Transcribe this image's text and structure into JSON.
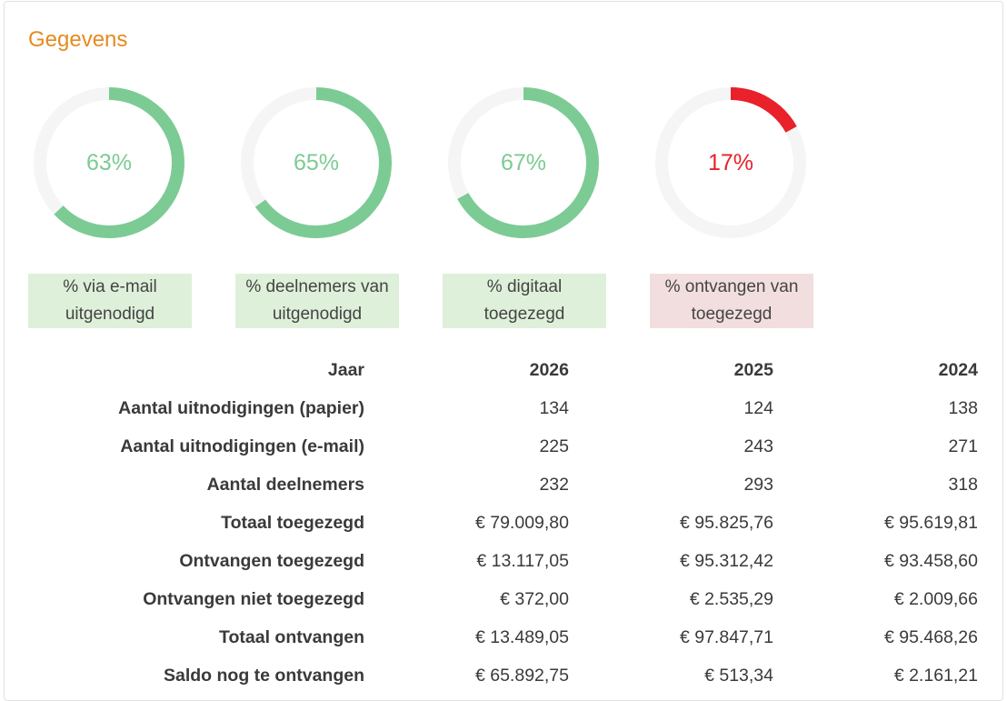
{
  "panel": {
    "title": "Gegevens"
  },
  "gauges": [
    {
      "percent": 63,
      "label": "% via e-mail uitgenodigd",
      "color": "#7ccb94",
      "label_bg": "#def0d9"
    },
    {
      "percent": 65,
      "label": "% deelnemers van uitgenodigd",
      "color": "#7ccb94",
      "label_bg": "#def0d9"
    },
    {
      "percent": 67,
      "label": "% digitaal toegezegd",
      "color": "#7ccb94",
      "label_bg": "#def0d9"
    },
    {
      "percent": 17,
      "label": "% ontvangen van toegezegd",
      "color": "#e8212b",
      "label_bg": "#f2dede"
    }
  ],
  "gauge_track_color": "#f5f5f5",
  "table": {
    "header": {
      "label": "Jaar",
      "years": [
        "2026",
        "2025",
        "2024"
      ]
    },
    "rows": [
      {
        "label": "Aantal uitnodigingen (papier)",
        "values": [
          "134",
          "124",
          "138"
        ]
      },
      {
        "label": "Aantal uitnodigingen (e-mail)",
        "values": [
          "225",
          "243",
          "271"
        ]
      },
      {
        "label": "Aantal deelnemers",
        "values": [
          "232",
          "293",
          "318"
        ]
      },
      {
        "label": "Totaal toegezegd",
        "values": [
          "€ 79.009,80",
          "€ 95.825,76",
          "€ 95.619,81"
        ]
      },
      {
        "label": "Ontvangen toegezegd",
        "values": [
          "€ 13.117,05",
          "€ 95.312,42",
          "€ 93.458,60"
        ]
      },
      {
        "label": "Ontvangen niet toegezegd",
        "values": [
          "€ 372,00",
          "€ 2.535,29",
          "€ 2.009,66"
        ]
      },
      {
        "label": "Totaal ontvangen",
        "values": [
          "€ 13.489,05",
          "€ 97.847,71",
          "€ 95.468,26"
        ]
      },
      {
        "label": "Saldo nog te ontvangen",
        "values": [
          "€ 65.892,75",
          "€ 513,34",
          "€ 2.161,21"
        ]
      }
    ]
  }
}
